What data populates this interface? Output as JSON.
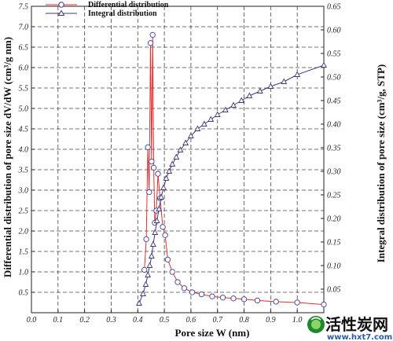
{
  "chart_data": {
    "type": "line",
    "xlabel": "Pore size W (nm)",
    "ylabel_left": "Differential distribution of pore size dV/dW (cm³/g nm)",
    "ylabel_right": "Integral distribution of pore size (cm³/g, STP)",
    "xlim": [
      0.0,
      1.1
    ],
    "ylim_left": [
      0.0,
      7.5
    ],
    "ylim_right": [
      0.0,
      0.65
    ],
    "x_ticks": [
      "0.0",
      "0.1",
      "0.2",
      "0.3",
      "0.4",
      "0.5",
      "0.6",
      "0.7",
      "0.8",
      "0.9",
      "1.0"
    ],
    "y_left_ticks": [
      "0.5",
      "1.0",
      "1.5",
      "2.0",
      "2.5",
      "3.0",
      "3.5",
      "4.0",
      "4.5",
      "5.0",
      "5.5",
      "6.0",
      "6.5",
      "7.0",
      "7.5"
    ],
    "y_right_ticks": [
      "0.05",
      "0.10",
      "0.15",
      "0.20",
      "0.25",
      "0.30",
      "0.35",
      "0.40",
      "0.45",
      "0.50",
      "0.55",
      "0.60",
      "0.65"
    ],
    "grid": true,
    "legend_position": "top-left",
    "series": [
      {
        "name": "Differential distribution",
        "axis": "left",
        "color": "#e03030",
        "marker": "circle",
        "x": [
          0.425,
          0.432,
          0.438,
          0.443,
          0.448,
          0.452,
          0.456,
          0.46,
          0.464,
          0.47,
          0.476,
          0.484,
          0.494,
          0.503,
          0.513,
          0.53,
          0.55,
          0.575,
          0.605,
          0.64,
          0.68,
          0.72,
          0.76,
          0.8,
          0.85,
          0.92,
          1.0,
          1.1
        ],
        "y": [
          1.05,
          1.8,
          4.05,
          2.95,
          6.6,
          3.7,
          6.8,
          3.55,
          2.2,
          2.5,
          3.4,
          2.8,
          2.1,
          1.9,
          1.3,
          1.0,
          0.75,
          0.6,
          0.5,
          0.45,
          0.4,
          0.37,
          0.35,
          0.33,
          0.3,
          0.27,
          0.25,
          0.2
        ]
      },
      {
        "name": "Integral distribution",
        "axis": "right",
        "color": "#3c3c7a",
        "marker": "triangle",
        "x": [
          0.405,
          0.42,
          0.43,
          0.438,
          0.445,
          0.452,
          0.458,
          0.465,
          0.472,
          0.48,
          0.488,
          0.497,
          0.507,
          0.518,
          0.53,
          0.545,
          0.56,
          0.58,
          0.6,
          0.625,
          0.65,
          0.675,
          0.7,
          0.73,
          0.76,
          0.79,
          0.82,
          0.86,
          0.9,
          0.95,
          1.0,
          1.1
        ],
        "y": [
          0.02,
          0.04,
          0.06,
          0.08,
          0.1,
          0.12,
          0.145,
          0.17,
          0.195,
          0.22,
          0.245,
          0.265,
          0.285,
          0.3,
          0.315,
          0.33,
          0.345,
          0.36,
          0.375,
          0.39,
          0.4,
          0.41,
          0.42,
          0.43,
          0.44,
          0.45,
          0.46,
          0.47,
          0.48,
          0.49,
          0.505,
          0.525
        ]
      }
    ]
  },
  "watermark": {
    "text": "活性炭网",
    "url": "www.hxt7.com"
  }
}
